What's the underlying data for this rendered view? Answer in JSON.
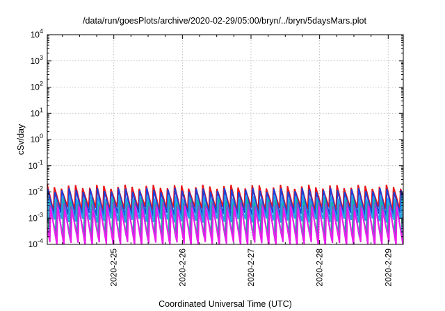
{
  "chart_data": {
    "type": "line",
    "title": "/data/run/goesPlots/archive/2020-02-29/05:00/bryn/../bryn/5daysMars.plot",
    "xlabel": "Coordinated Universal Time (UTC)",
    "ylabel": "cSv/day",
    "yscale": "log",
    "ylim": [
      0.0001,
      10000
    ],
    "xlim": [
      -0.97,
      4.22
    ],
    "grid": true,
    "x_ticks": [
      {
        "value": 0,
        "label": "2020-2-25"
      },
      {
        "value": 1,
        "label": "2020-2-26"
      },
      {
        "value": 2,
        "label": "2020-2-27"
      },
      {
        "value": 3,
        "label": "2020-2-28"
      },
      {
        "value": 4,
        "label": "2020-2-29"
      }
    ],
    "y_ticks": [
      {
        "value": 0.0001,
        "base": "10",
        "exp": "-4"
      },
      {
        "value": 0.001,
        "base": "10",
        "exp": "-3"
      },
      {
        "value": 0.01,
        "base": "10",
        "exp": "-2"
      },
      {
        "value": 0.1,
        "base": "10",
        "exp": "-1"
      },
      {
        "value": 1,
        "base": "10",
        "exp": "0"
      },
      {
        "value": 10,
        "base": "10",
        "exp": "1"
      },
      {
        "value": 100,
        "base": "10",
        "exp": "2"
      },
      {
        "value": 1000,
        "base": "10",
        "exp": "3"
      },
      {
        "value": 10000,
        "base": "10",
        "exp": "4"
      }
    ],
    "sawtooth_period_days": 0.103,
    "series": [
      {
        "color": "#e8141a",
        "peak": 0.016,
        "trough": 0.0022,
        "phase": 0.0
      },
      {
        "color": "#1f3fd6",
        "peak": 0.012,
        "trough": 0.0013,
        "phase": 0.008
      },
      {
        "color": "#2a9df0",
        "peak": 0.0065,
        "trough": 0.0008,
        "phase": 0.015
      },
      {
        "color": "#17b59a",
        "peak": 0.0045,
        "trough": 0.00022,
        "phase": 0.03
      },
      {
        "color": "#8a4fc8",
        "peak": 0.0035,
        "trough": 0.00015,
        "phase": 0.04
      },
      {
        "color": "#ee1cee",
        "peak": 0.0024,
        "trough": 0.0001,
        "phase": 0.05
      }
    ]
  }
}
